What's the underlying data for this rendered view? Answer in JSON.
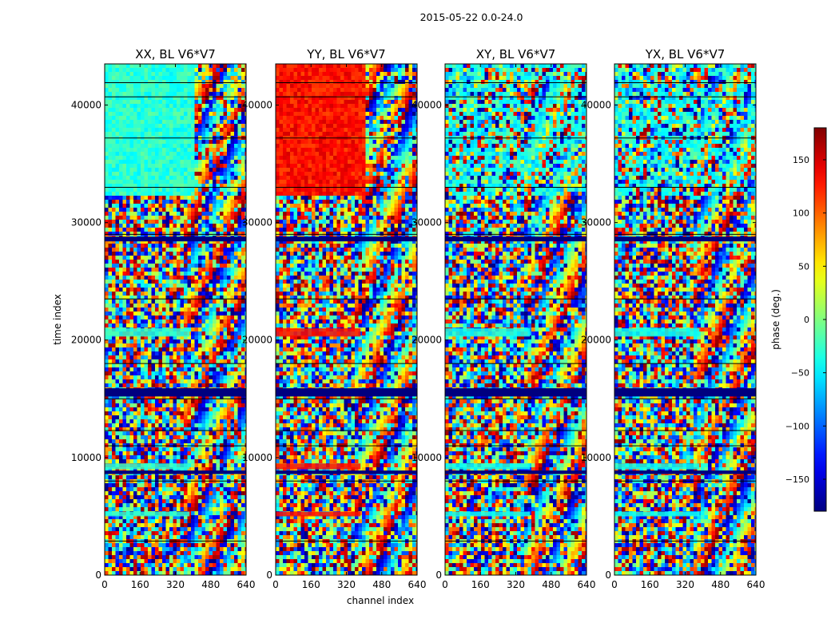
{
  "figure": {
    "suptitle": "2015-05-22 0.0-24.0"
  },
  "chart_data": {
    "type": "heatmap",
    "suptitle": "2015-05-22 0.0-24.0",
    "xlabel": "channel index",
    "ylabel": "time index",
    "xlim": [
      0,
      640
    ],
    "ylim": [
      0,
      43500
    ],
    "xticks": [
      0,
      160,
      320,
      480,
      640
    ],
    "yticks": [
      0,
      10000,
      20000,
      30000,
      40000
    ],
    "xtick_labels": [
      "0",
      "160",
      "320",
      "480",
      "640"
    ],
    "ytick_labels": [
      "0",
      "10000",
      "20000",
      "30000",
      "40000"
    ],
    "panels": [
      {
        "title": "XX, BL V6*V7",
        "dominant_phase_upper": -30,
        "dominant_phase_mid": -30
      },
      {
        "title": "YY, BL V6*V7",
        "dominant_phase_upper": 130,
        "dominant_phase_mid": 130
      },
      {
        "title": "XY, BL V6*V7",
        "dominant_phase_upper": null,
        "dominant_phase_mid": -40
      },
      {
        "title": "YX, BL V6*V7",
        "dominant_phase_upper": null,
        "dominant_phase_mid": -40
      }
    ],
    "colorbar": {
      "label": "phase (deg.)",
      "range": [
        -180,
        180
      ],
      "ticks": [
        -150,
        -100,
        -50,
        0,
        50,
        100,
        150
      ],
      "tick_labels": [
        "−150",
        "−100",
        "−50",
        "0",
        "50",
        "100",
        "150"
      ],
      "colormap": "jet"
    },
    "flagged_time_ranges": [
      [
        15200,
        15900
      ],
      [
        28400,
        28800
      ],
      [
        8600,
        8900
      ]
    ]
  },
  "colors": {
    "flag": "#00007f",
    "xx_block": "#6cffb4",
    "yy_block": "#ff3a00"
  }
}
